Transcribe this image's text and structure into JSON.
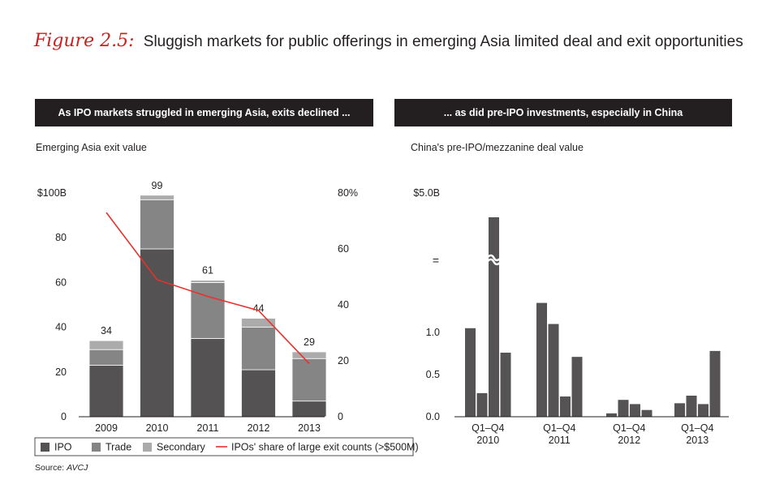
{
  "figure": {
    "label": "Figure 2.5:",
    "title": "Sluggish markets for public offerings in emerging Asia limited deal and exit opportunities"
  },
  "panels": [
    {
      "header": "As IPO markets struggled in emerging Asia, exits declined ...",
      "subtitle": "Emerging Asia exit value"
    },
    {
      "header": "... as did pre-IPO investments, especially in China",
      "subtitle": "China's pre-IPO/mezzanine deal value"
    }
  ],
  "source": {
    "prefix": "Source: ",
    "name": "AVCJ"
  },
  "colors": {
    "ipo": "#545252",
    "trade": "#858585",
    "secondary": "#ababab",
    "line": "#e8312c",
    "bar": "#555353",
    "text": "#231f20",
    "header_bg": "#231f20"
  },
  "chart_data": [
    {
      "type": "bar",
      "stacked": true,
      "title": "Emerging Asia exit value",
      "categories": [
        "2009",
        "2010",
        "2011",
        "2012",
        "2013"
      ],
      "series": [
        {
          "name": "IPO",
          "values": [
            23,
            75,
            35,
            21,
            7
          ]
        },
        {
          "name": "Trade",
          "values": [
            7,
            22,
            25,
            19,
            19
          ]
        },
        {
          "name": "Secondary",
          "values": [
            4,
            2,
            1,
            4,
            3
          ]
        }
      ],
      "totals": [
        "34",
        "99",
        "61",
        "44",
        "29"
      ],
      "line_series": {
        "name": "IPOs' share of large exit counts (>$500M)",
        "values": [
          73,
          49,
          43,
          38,
          19
        ],
        "axis": "right"
      },
      "ylim": [
        0,
        100
      ],
      "y2lim": [
        0,
        80
      ],
      "yticks": [
        "0",
        "20",
        "40",
        "60",
        "80",
        "$100B"
      ],
      "y2ticks": [
        "0",
        "20",
        "40",
        "60",
        "80%"
      ],
      "legend_position": "bottom"
    },
    {
      "type": "bar",
      "title": "China's pre-IPO/mezzanine deal value",
      "groups": [
        {
          "label": "Q1–Q4",
          "year": "2010",
          "values": [
            1.05,
            0.28,
            5.0,
            0.76
          ]
        },
        {
          "label": "Q1–Q4",
          "year": "2011",
          "values": [
            1.35,
            1.1,
            0.24,
            0.71
          ]
        },
        {
          "label": "Q1–Q4",
          "year": "2012",
          "values": [
            0.04,
            0.2,
            0.15,
            0.08
          ]
        },
        {
          "label": "Q1–Q4",
          "year": "2013",
          "values": [
            0.16,
            0.25,
            0.15,
            0.78
          ]
        }
      ],
      "axis_break": true,
      "break_marker": "=",
      "yticks": [
        "0.0",
        "0.5",
        "1.0",
        "$5.0B"
      ],
      "ylim": [
        0,
        5.0
      ]
    }
  ]
}
